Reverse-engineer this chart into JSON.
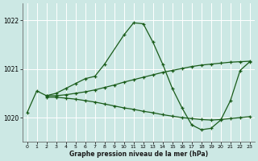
{
  "xlabel": "Graphe pression niveau de la mer (hPa)",
  "xlim": [
    -0.5,
    23.5
  ],
  "ylim": [
    1019.5,
    1022.35
  ],
  "yticks": [
    1020,
    1021,
    1022
  ],
  "xticks": [
    0,
    1,
    2,
    3,
    4,
    5,
    6,
    7,
    8,
    9,
    10,
    11,
    12,
    13,
    14,
    15,
    16,
    17,
    18,
    19,
    20,
    21,
    22,
    23
  ],
  "background_color": "#cce8e4",
  "grid_color": "#ffffff",
  "line_color": "#1a5c1a",
  "series1": {
    "x": [
      0,
      1,
      2,
      3,
      4,
      5,
      6,
      7,
      8,
      10,
      11,
      12,
      13,
      14,
      15,
      16,
      17,
      18,
      19,
      20,
      21,
      22,
      23
    ],
    "y": [
      1020.1,
      1020.55,
      1020.45,
      1020.5,
      1020.6,
      1020.7,
      1020.8,
      1020.85,
      1021.1,
      1021.7,
      1021.95,
      1021.93,
      1021.55,
      1021.1,
      1020.6,
      1020.2,
      1019.85,
      1019.75,
      1019.78,
      1019.95,
      1020.35,
      1020.97,
      1021.15
    ]
  },
  "series2": {
    "x": [
      2,
      3,
      4,
      5,
      6,
      7,
      8,
      9,
      10,
      11,
      12,
      13,
      14,
      15,
      16,
      17,
      18,
      19,
      20,
      21,
      22,
      23
    ],
    "y": [
      1020.45,
      1020.45,
      1020.47,
      1020.5,
      1020.53,
      1020.57,
      1020.62,
      1020.67,
      1020.73,
      1020.78,
      1020.83,
      1020.88,
      1020.93,
      1020.97,
      1021.01,
      1021.05,
      1021.08,
      1021.1,
      1021.12,
      1021.14,
      1021.15,
      1021.16
    ]
  },
  "series3": {
    "x": [
      2,
      3,
      4,
      5,
      6,
      7,
      8,
      9,
      10,
      11,
      12,
      13,
      14,
      15,
      16,
      17,
      18,
      19,
      20,
      21,
      22,
      23
    ],
    "y": [
      1020.42,
      1020.42,
      1020.4,
      1020.38,
      1020.35,
      1020.32,
      1020.28,
      1020.24,
      1020.2,
      1020.17,
      1020.13,
      1020.1,
      1020.06,
      1020.03,
      1020.0,
      1019.98,
      1019.96,
      1019.95,
      1019.96,
      1019.98,
      1020.0,
      1020.02
    ]
  }
}
